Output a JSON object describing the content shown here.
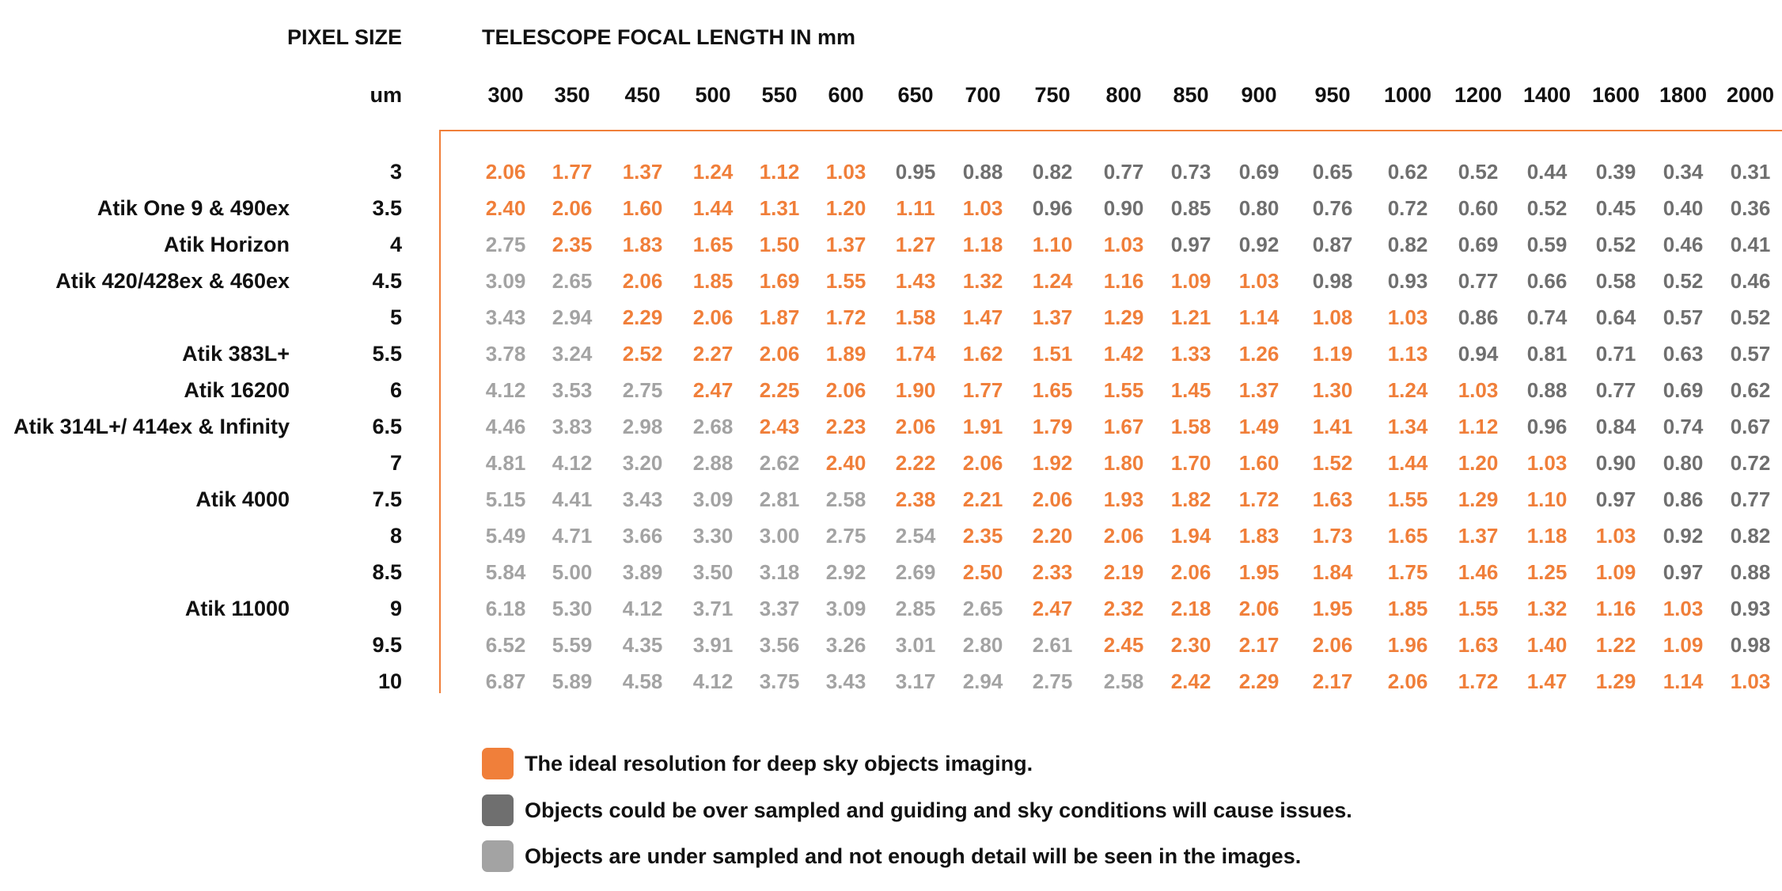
{
  "header": {
    "pixel_size_title": "PIXEL SIZE",
    "focal_title": "TELESCOPE FOCAL LENGTH IN mm",
    "pixel_unit": "um"
  },
  "colors": {
    "ideal": "#f07f3a",
    "over": "#6f6f6f",
    "under": "#a3a3a3"
  },
  "focal_lengths": [
    "300",
    "350",
    "450",
    "500",
    "550",
    "600",
    "650",
    "700",
    "750",
    "800",
    "850",
    "900",
    "950",
    "1000",
    "1200",
    "1400",
    "1600",
    "1800",
    "2000"
  ],
  "rows": [
    {
      "camera": "",
      "pixel": "3",
      "values": [
        "2.06",
        "1.77",
        "1.37",
        "1.24",
        "1.12",
        "1.03",
        "0.95",
        "0.88",
        "0.82",
        "0.77",
        "0.73",
        "0.69",
        "0.65",
        "0.62",
        "0.52",
        "0.44",
        "0.39",
        "0.34",
        "0.31"
      ],
      "classes": "iiiiiiooooooooooooo"
    },
    {
      "camera": "Atik One 9 & 490ex",
      "pixel": "3.5",
      "values": [
        "2.40",
        "2.06",
        "1.60",
        "1.44",
        "1.31",
        "1.20",
        "1.11",
        "1.03",
        "0.96",
        "0.90",
        "0.85",
        "0.80",
        "0.76",
        "0.72",
        "0.60",
        "0.52",
        "0.45",
        "0.40",
        "0.36"
      ],
      "classes": "iiiiiiiiooooooooooo"
    },
    {
      "camera": "Atik Horizon",
      "pixel": "4",
      "values": [
        "2.75",
        "2.35",
        "1.83",
        "1.65",
        "1.50",
        "1.37",
        "1.27",
        "1.18",
        "1.10",
        "1.03",
        "0.97",
        "0.92",
        "0.87",
        "0.82",
        "0.69",
        "0.59",
        "0.52",
        "0.46",
        "0.41"
      ],
      "classes": "uiiiiiiiiiooooooooo"
    },
    {
      "camera": "Atik 420/428ex & 460ex",
      "pixel": "4.5",
      "values": [
        "3.09",
        "2.65",
        "2.06",
        "1.85",
        "1.69",
        "1.55",
        "1.43",
        "1.32",
        "1.24",
        "1.16",
        "1.09",
        "1.03",
        "0.98",
        "0.93",
        "0.77",
        "0.66",
        "0.58",
        "0.52",
        "0.46"
      ],
      "classes": "uuiiiiiiiiiiooooooo"
    },
    {
      "camera": "",
      "pixel": "5",
      "values": [
        "3.43",
        "2.94",
        "2.29",
        "2.06",
        "1.87",
        "1.72",
        "1.58",
        "1.47",
        "1.37",
        "1.29",
        "1.21",
        "1.14",
        "1.08",
        "1.03",
        "0.86",
        "0.74",
        "0.64",
        "0.57",
        "0.52"
      ],
      "classes": "uuiiiiiiiiiiiiooooo"
    },
    {
      "camera": "Atik 383L+",
      "pixel": "5.5",
      "values": [
        "3.78",
        "3.24",
        "2.52",
        "2.27",
        "2.06",
        "1.89",
        "1.74",
        "1.62",
        "1.51",
        "1.42",
        "1.33",
        "1.26",
        "1.19",
        "1.13",
        "0.94",
        "0.81",
        "0.71",
        "0.63",
        "0.57"
      ],
      "classes": "uuiiiiiiiiiiiiooooo"
    },
    {
      "camera": "Atik 16200",
      "pixel": "6",
      "values": [
        "4.12",
        "3.53",
        "2.75",
        "2.47",
        "2.25",
        "2.06",
        "1.90",
        "1.77",
        "1.65",
        "1.55",
        "1.45",
        "1.37",
        "1.30",
        "1.24",
        "1.03",
        "0.88",
        "0.77",
        "0.69",
        "0.62"
      ],
      "classes": "uuuiiiiiiiiiiiioooo"
    },
    {
      "camera": "Atik 314L+/ 414ex & Infinity",
      "pixel": "6.5",
      "values": [
        "4.46",
        "3.83",
        "2.98",
        "2.68",
        "2.43",
        "2.23",
        "2.06",
        "1.91",
        "1.79",
        "1.67",
        "1.58",
        "1.49",
        "1.41",
        "1.34",
        "1.12",
        "0.96",
        "0.84",
        "0.74",
        "0.67"
      ],
      "classes": "uuuuiiiiiiiiiiioooo"
    },
    {
      "camera": "",
      "pixel": "7",
      "values": [
        "4.81",
        "4.12",
        "3.20",
        "2.88",
        "2.62",
        "2.40",
        "2.22",
        "2.06",
        "1.92",
        "1.80",
        "1.70",
        "1.60",
        "1.52",
        "1.44",
        "1.20",
        "1.03",
        "0.90",
        "0.80",
        "0.72"
      ],
      "classes": "uuuuuiiiiiiiiiiiooo"
    },
    {
      "camera": "Atik 4000",
      "pixel": "7.5",
      "values": [
        "5.15",
        "4.41",
        "3.43",
        "3.09",
        "2.81",
        "2.58",
        "2.38",
        "2.21",
        "2.06",
        "1.93",
        "1.82",
        "1.72",
        "1.63",
        "1.55",
        "1.29",
        "1.10",
        "0.97",
        "0.86",
        "0.77"
      ],
      "classes": "uuuuuuiiiiiiiiiiooo"
    },
    {
      "camera": "",
      "pixel": "8",
      "values": [
        "5.49",
        "4.71",
        "3.66",
        "3.30",
        "3.00",
        "2.75",
        "2.54",
        "2.35",
        "2.20",
        "2.06",
        "1.94",
        "1.83",
        "1.73",
        "1.65",
        "1.37",
        "1.18",
        "1.03",
        "0.92",
        "0.82"
      ],
      "classes": "uuuuuuuiiiiiiiiiioo"
    },
    {
      "camera": "",
      "pixel": "8.5",
      "values": [
        "5.84",
        "5.00",
        "3.89",
        "3.50",
        "3.18",
        "2.92",
        "2.69",
        "2.50",
        "2.33",
        "2.19",
        "2.06",
        "1.95",
        "1.84",
        "1.75",
        "1.46",
        "1.25",
        "1.09",
        "0.97",
        "0.88"
      ],
      "classes": "uuuuuuuiiiiiiiiiioo"
    },
    {
      "camera": "Atik 11000",
      "pixel": "9",
      "values": [
        "6.18",
        "5.30",
        "4.12",
        "3.71",
        "3.37",
        "3.09",
        "2.85",
        "2.65",
        "2.47",
        "2.32",
        "2.18",
        "2.06",
        "1.95",
        "1.85",
        "1.55",
        "1.32",
        "1.16",
        "1.03",
        "0.93"
      ],
      "classes": "uuuuuuuuiiiiiiiiiio"
    },
    {
      "camera": "",
      "pixel": "9.5",
      "values": [
        "6.52",
        "5.59",
        "4.35",
        "3.91",
        "3.56",
        "3.26",
        "3.01",
        "2.80",
        "2.61",
        "2.45",
        "2.30",
        "2.17",
        "2.06",
        "1.96",
        "1.63",
        "1.40",
        "1.22",
        "1.09",
        "0.98"
      ],
      "classes": "uuuuuuuuuiiiiiiiiio"
    },
    {
      "camera": "",
      "pixel": "10",
      "values": [
        "6.87",
        "5.89",
        "4.58",
        "4.12",
        "3.75",
        "3.43",
        "3.17",
        "2.94",
        "2.75",
        "2.58",
        "2.42",
        "2.29",
        "2.17",
        "2.06",
        "1.72",
        "1.47",
        "1.29",
        "1.14",
        "1.03"
      ],
      "classes": "uuuuuuuuuuiiiiiiiii"
    }
  ],
  "legend": [
    {
      "key": "ideal",
      "text": "The ideal resolution for deep sky objects imaging."
    },
    {
      "key": "over",
      "text": "Objects could be over sampled and guiding and sky conditions will cause issues."
    },
    {
      "key": "under",
      "text": "Objects are under sampled and not enough detail will be seen in the images."
    }
  ]
}
